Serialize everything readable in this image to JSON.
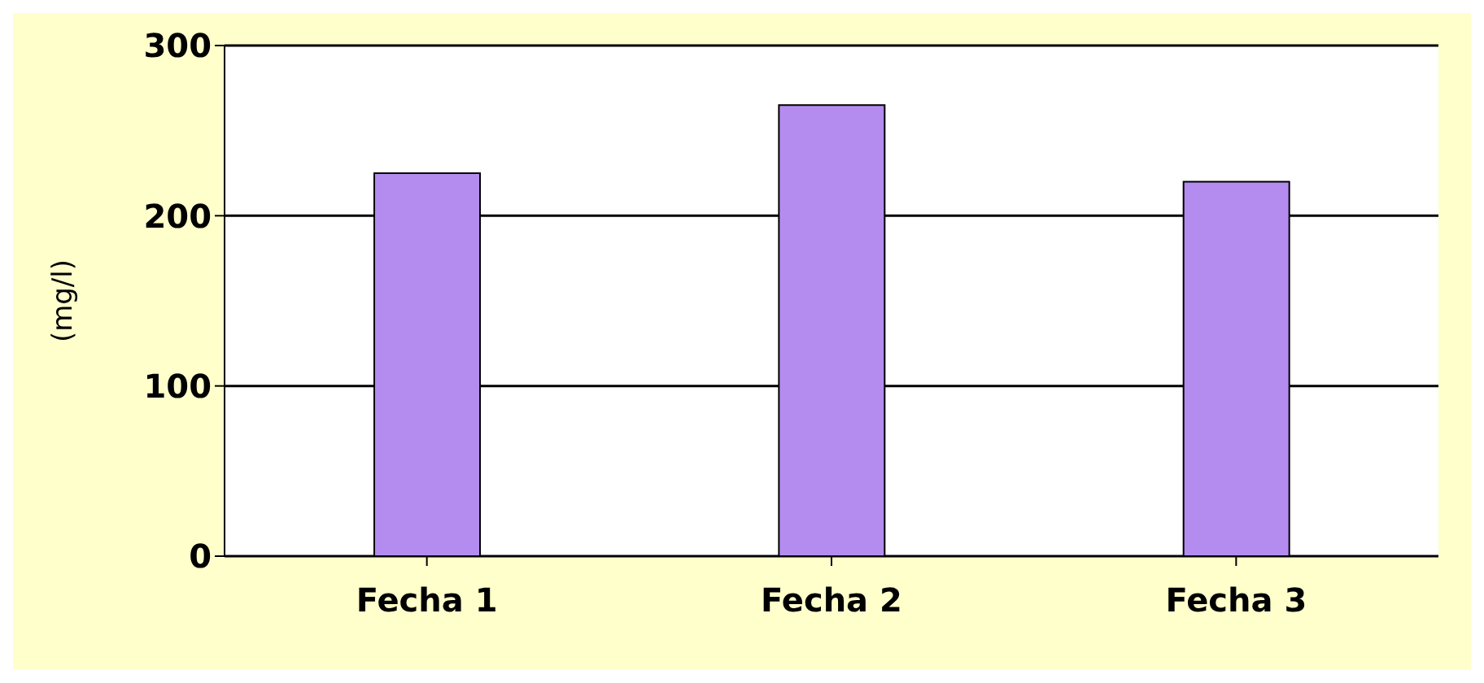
{
  "chart_data": {
    "type": "bar",
    "ylabel": "(mg/l)",
    "categories": [
      "Fecha 1",
      "Fecha 2",
      "Fecha 3"
    ],
    "values": [
      225,
      265,
      220
    ],
    "color": "#b48cf0",
    "ylim": [
      0,
      300
    ],
    "yticks": [
      0,
      100,
      200,
      300
    ],
    "grid": "y"
  }
}
